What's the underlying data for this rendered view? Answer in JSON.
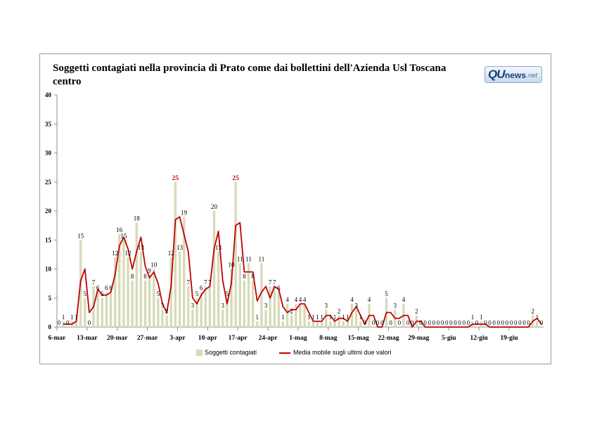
{
  "logo": {
    "part1": "QU",
    "part2": "news",
    "part3": ".net"
  },
  "chart_data": {
    "type": "bar",
    "title": "Soggetti contagiati nella provincia di Prato come dai bollettini dell'Azienda Usl Toscana centro",
    "xlabel": "",
    "ylabel": "",
    "ylim": [
      0,
      40
    ],
    "yticks": [
      0,
      5,
      10,
      15,
      20,
      25,
      30,
      35,
      40
    ],
    "grid": false,
    "legend_position": "bottom",
    "x_tick_labels": [
      "6-mar",
      "13-mar",
      "20-mar",
      "27-mar",
      "3-apr",
      "10-apr",
      "17-apr",
      "24-apr",
      "1-mag",
      "8-mag",
      "15-mag",
      "22-mag",
      "29-mag",
      "5-giu",
      "12-giu",
      "19-giu"
    ],
    "start_date": "6-mar",
    "highlight_color": "#c00000",
    "series": [
      {
        "name": "Soggetti contagiati",
        "type": "bar",
        "color": "#d6dab8",
        "values": [
          0,
          1,
          0,
          1,
          1,
          15,
          5,
          0,
          7,
          6,
          5,
          6,
          6,
          12,
          16,
          15,
          12,
          8,
          18,
          13,
          8,
          9,
          10,
          5,
          3,
          2,
          12,
          25,
          13,
          19,
          7,
          3,
          5,
          6,
          7,
          7,
          20,
          13,
          3,
          5,
          10,
          25,
          11,
          8,
          11,
          8,
          1,
          11,
          3,
          7,
          7,
          6,
          1,
          4,
          2,
          4,
          4,
          4,
          1,
          1,
          1,
          1,
          3,
          1,
          1,
          2,
          1,
          1,
          4,
          3,
          1,
          0,
          4,
          0,
          0,
          0,
          5,
          0,
          3,
          0,
          4,
          0,
          0,
          2,
          0,
          0,
          0,
          0,
          0,
          0,
          0,
          0,
          0,
          0,
          0,
          0,
          1,
          0,
          1,
          0,
          0,
          0,
          0,
          0,
          0,
          0,
          0,
          0,
          0,
          0,
          2,
          1,
          0
        ],
        "labels": [
          "0",
          "1",
          "0",
          "1",
          "1",
          "15",
          "5",
          "0",
          "7",
          "6",
          "5",
          "6",
          "6",
          "12",
          "16",
          "15",
          "12",
          "8",
          "18",
          "13",
          "8",
          "9",
          "10",
          "5",
          "3",
          "2",
          "12",
          "25",
          "13",
          "19",
          "7",
          "3",
          "5",
          "6",
          "7",
          "7",
          "20",
          "13",
          "3",
          "5",
          "10",
          "25",
          "11",
          "8",
          "11",
          "8",
          "1",
          "11",
          "3",
          "7",
          "7",
          "6",
          "1",
          "4",
          "2",
          "4",
          "4",
          "4",
          "1",
          "1",
          "1",
          "1",
          "3",
          "1",
          "1",
          "2",
          "1",
          "1",
          "4",
          "3",
          "1",
          "0",
          "4",
          "0",
          "0",
          "0",
          "5",
          "0",
          "3",
          "0",
          "4",
          "0",
          "0",
          "2",
          "0",
          "0",
          "0",
          "0",
          "0",
          "0",
          "0",
          "0",
          "0",
          "0",
          "0",
          "0",
          "1",
          "0",
          "1",
          "0",
          "0",
          "0",
          "0",
          "0",
          "0",
          "0",
          "0",
          "0",
          "0",
          "0",
          "2",
          "1",
          "0"
        ],
        "highlight_labels": [
          "25"
        ]
      },
      {
        "name": "Media mobile sugli ultimi due valori",
        "type": "line",
        "color": "#c00000",
        "values": [
          null,
          0.5,
          0.5,
          0.5,
          1,
          8,
          10,
          2.5,
          3.5,
          6.5,
          5.5,
          5.5,
          6,
          9,
          14,
          15.5,
          13.5,
          10,
          13,
          15.5,
          10.5,
          8.5,
          9.5,
          7.5,
          4,
          2.5,
          7,
          18.5,
          19,
          16,
          13,
          5,
          4,
          5.5,
          6.5,
          7,
          13.5,
          16.5,
          8,
          4,
          7.5,
          17.5,
          18,
          9.5,
          9.5,
          9.5,
          4.5,
          6,
          7,
          5,
          7,
          6.5,
          3.5,
          2.5,
          3,
          3,
          4,
          4,
          2.5,
          1,
          1,
          1,
          2,
          2,
          1,
          1.5,
          1.5,
          1,
          2.5,
          3.5,
          2,
          0.5,
          2,
          2,
          0,
          0,
          2.5,
          2.5,
          1.5,
          1.5,
          2,
          2,
          0,
          1,
          1,
          0,
          0,
          0,
          0,
          0,
          0,
          0,
          0,
          0,
          0,
          0,
          0.5,
          0.5,
          0.5,
          0.5,
          0,
          0,
          0,
          0,
          0,
          0,
          0,
          0,
          0,
          0,
          1,
          1.5,
          0.5
        ]
      }
    ]
  }
}
